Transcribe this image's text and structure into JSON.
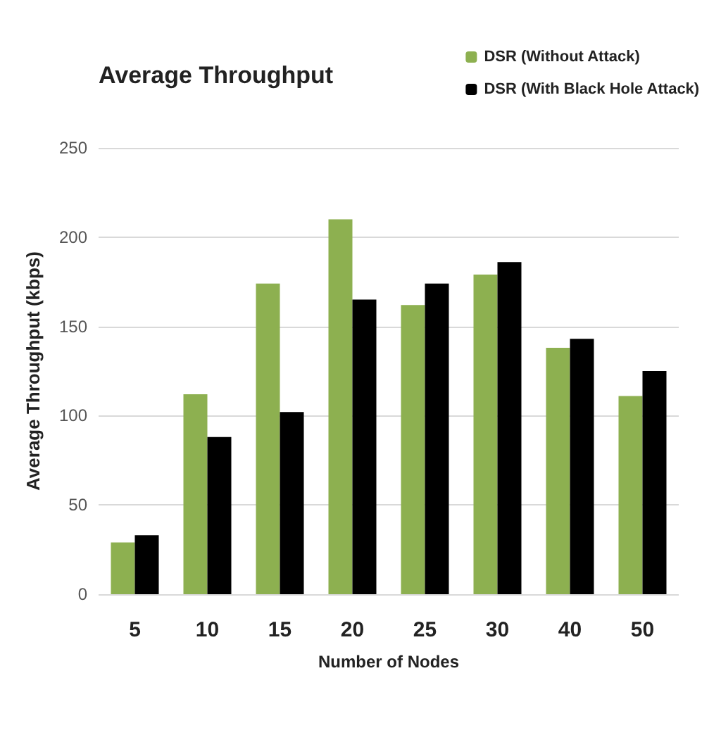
{
  "chart_data": {
    "type": "bar",
    "title": "Average Throughput",
    "xlabel": "Number of Nodes",
    "ylabel": "Average Throughput (kbps)",
    "categories": [
      "5",
      "10",
      "15",
      "20",
      "25",
      "30",
      "40",
      "50"
    ],
    "series": [
      {
        "name": "DSR (Without Attack)",
        "color": "#8db050",
        "values": [
          29,
          112,
          174,
          210,
          162,
          179,
          138,
          111
        ]
      },
      {
        "name": "DSR (With Black Hole Attack)",
        "color": "#000000",
        "values": [
          33,
          88,
          102,
          165,
          174,
          186,
          143,
          125
        ]
      }
    ],
    "ylim": [
      0,
      250
    ],
    "yticks": [
      0,
      50,
      100,
      150,
      200,
      250
    ],
    "grid": "y",
    "legend": "top right"
  }
}
